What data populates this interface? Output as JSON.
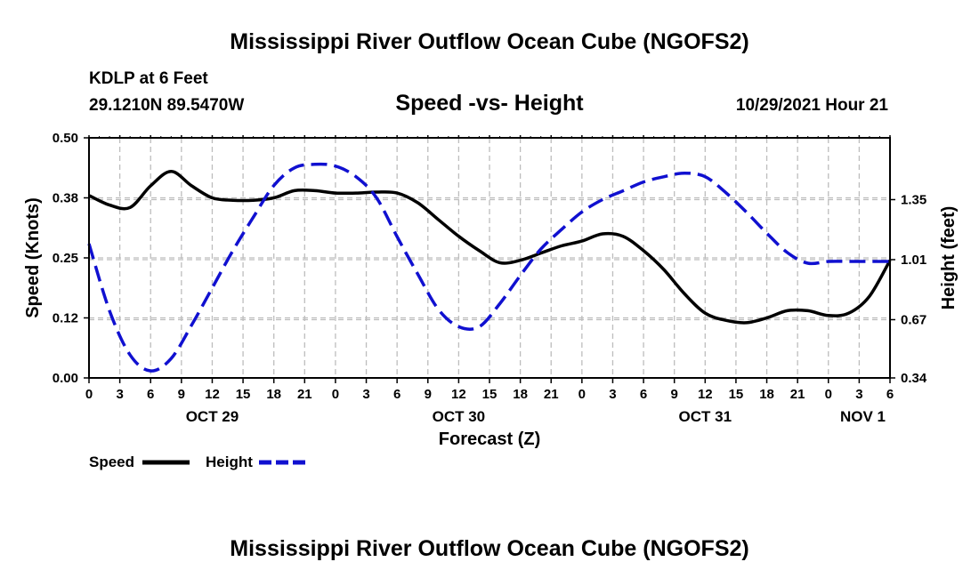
{
  "title": "Mississippi River Outflow Ocean Cube (NGOFS2)",
  "station": "KDLP at 6 Feet",
  "coords": "29.1210N  89.5470W",
  "date_label": "10/29/2021 Hour 21",
  "footer_title": "Mississippi River Outflow Ocean Cube (NGOFS2)",
  "colors": {
    "speed": "#000000",
    "height": "#1010d0",
    "grid": "#bdbdbd"
  },
  "chart_data": {
    "type": "line",
    "title": "Speed -vs- Height",
    "xlabel": "Forecast (Z)",
    "ylabel": "Speed (Knots)",
    "ylabel_right": "Height (feet)",
    "xlim": [
      0,
      78
    ],
    "ylim": [
      0.0,
      0.5
    ],
    "ylim_right": [
      0.34,
      1.7
    ],
    "x_ticks": [
      0,
      3,
      6,
      9,
      12,
      15,
      18,
      21,
      24,
      27,
      30,
      33,
      36,
      39,
      42,
      45,
      48,
      51,
      54,
      57,
      60,
      63,
      66,
      69,
      72,
      75,
      78
    ],
    "x_tick_labels": [
      "0",
      "3",
      "6",
      "9",
      "12",
      "15",
      "18",
      "21",
      "0",
      "3",
      "6",
      "9",
      "12",
      "15",
      "18",
      "21",
      "0",
      "3",
      "6",
      "9",
      "12",
      "15",
      "18",
      "21",
      "0",
      "3",
      "6"
    ],
    "date_labels": [
      {
        "x": 12,
        "label": "OCT 29"
      },
      {
        "x": 36,
        "label": "OCT 30"
      },
      {
        "x": 60,
        "label": "OCT 31"
      },
      {
        "x": 78,
        "label": "NOV 1"
      }
    ],
    "y_ticks": [
      0.0,
      0.125,
      0.25,
      0.375,
      0.5
    ],
    "y_tick_labels": [
      "0.00",
      "0.12",
      "0.25",
      "0.38",
      "0.50"
    ],
    "y_ticks_right": [
      0.34,
      0.67,
      1.01,
      1.35
    ],
    "y_tick_labels_right": [
      "0.34",
      "0.67",
      "1.01",
      "1.35"
    ],
    "series": [
      {
        "name": "Speed",
        "axis": "left",
        "style": "solid",
        "x": [
          0,
          2,
          4,
          6,
          8,
          10,
          12,
          14,
          16,
          18,
          20,
          22,
          24,
          26,
          28,
          30,
          32,
          34,
          36,
          38,
          40,
          42,
          44,
          46,
          48,
          50,
          52,
          54,
          56,
          58,
          60,
          62,
          64,
          66,
          68,
          70,
          72,
          74,
          76,
          78
        ],
        "values": [
          0.38,
          0.36,
          0.355,
          0.4,
          0.43,
          0.4,
          0.375,
          0.37,
          0.37,
          0.375,
          0.39,
          0.39,
          0.385,
          0.385,
          0.387,
          0.385,
          0.365,
          0.33,
          0.295,
          0.265,
          0.24,
          0.245,
          0.26,
          0.275,
          0.285,
          0.3,
          0.295,
          0.265,
          0.225,
          0.175,
          0.135,
          0.12,
          0.115,
          0.125,
          0.14,
          0.14,
          0.13,
          0.135,
          0.17,
          0.245
        ]
      },
      {
        "name": "Height",
        "axis": "right",
        "style": "dashed",
        "x": [
          0,
          2,
          4,
          6,
          8,
          10,
          12,
          14,
          16,
          18,
          20,
          22,
          24,
          26,
          28,
          30,
          32,
          34,
          36,
          38,
          40,
          42,
          44,
          46,
          48,
          50,
          52,
          54,
          56,
          58,
          60,
          62,
          64,
          66,
          68,
          70,
          72,
          74,
          76,
          78
        ],
        "values": [
          1.1,
          0.72,
          0.47,
          0.38,
          0.45,
          0.64,
          0.85,
          1.06,
          1.25,
          1.43,
          1.53,
          1.55,
          1.54,
          1.48,
          1.36,
          1.14,
          0.93,
          0.73,
          0.63,
          0.63,
          0.76,
          0.92,
          1.07,
          1.18,
          1.28,
          1.35,
          1.4,
          1.45,
          1.48,
          1.5,
          1.48,
          1.39,
          1.28,
          1.16,
          1.05,
          0.99,
          1.0,
          1.0,
          1.0,
          1.0
        ]
      }
    ],
    "legend": [
      {
        "label": "Speed",
        "series": "Speed"
      },
      {
        "label": "Height",
        "series": "Height"
      }
    ]
  }
}
